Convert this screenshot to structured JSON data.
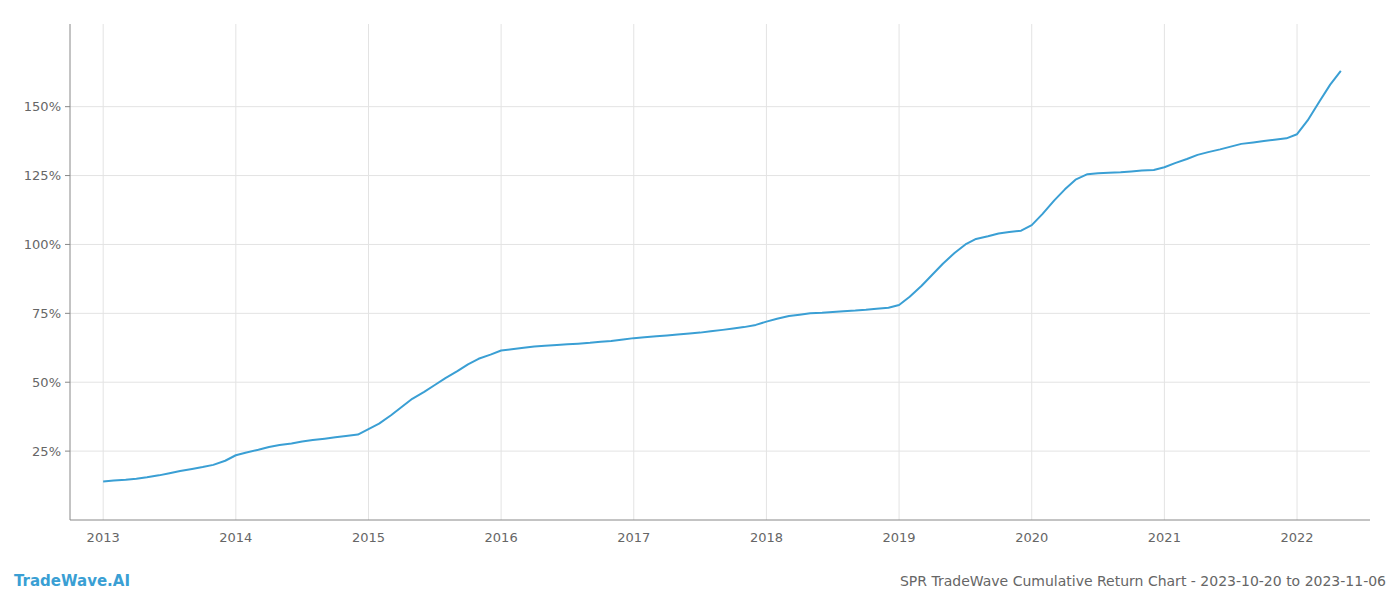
{
  "chart_data": {
    "type": "line",
    "title": "SPR TradeWave Cumulative Return Chart - 2023-10-20 to 2023-11-06",
    "annotations": [
      "TradeWave.AI"
    ],
    "color": "#3a9fd4",
    "grid": true,
    "x": [
      2013.0,
      2013.08,
      2013.17,
      2013.25,
      2013.33,
      2013.42,
      2013.5,
      2013.58,
      2013.67,
      2013.75,
      2013.83,
      2013.92,
      2014.0,
      2014.08,
      2014.17,
      2014.25,
      2014.33,
      2014.42,
      2014.5,
      2014.58,
      2014.67,
      2014.75,
      2014.83,
      2014.92,
      2015.0,
      2015.08,
      2015.17,
      2015.25,
      2015.33,
      2015.42,
      2015.5,
      2015.58,
      2015.67,
      2015.75,
      2015.83,
      2015.92,
      2016.0,
      2016.08,
      2016.17,
      2016.25,
      2016.33,
      2016.42,
      2016.5,
      2016.58,
      2016.67,
      2016.75,
      2016.83,
      2016.92,
      2017.0,
      2017.08,
      2017.17,
      2017.25,
      2017.33,
      2017.42,
      2017.5,
      2017.58,
      2017.67,
      2017.75,
      2017.83,
      2017.92,
      2018.0,
      2018.08,
      2018.17,
      2018.25,
      2018.33,
      2018.42,
      2018.5,
      2018.58,
      2018.67,
      2018.75,
      2018.83,
      2018.92,
      2019.0,
      2019.08,
      2019.17,
      2019.25,
      2019.33,
      2019.42,
      2019.5,
      2019.58,
      2019.67,
      2019.75,
      2019.83,
      2019.92,
      2020.0,
      2020.08,
      2020.17,
      2020.25,
      2020.33,
      2020.42,
      2020.5,
      2020.58,
      2020.67,
      2020.75,
      2020.83,
      2020.92,
      2021.0,
      2021.08,
      2021.17,
      2021.25,
      2021.33,
      2021.42,
      2021.5,
      2021.58,
      2021.67,
      2021.75,
      2021.83,
      2021.92,
      2022.0,
      2022.08,
      2022.17,
      2022.25,
      2022.33
    ],
    "values": [
      14.0,
      14.3,
      14.6,
      15.0,
      15.5,
      16.2,
      17.0,
      17.8,
      18.5,
      19.2,
      20.0,
      21.5,
      23.5,
      24.5,
      25.5,
      26.5,
      27.2,
      27.8,
      28.5,
      29.0,
      29.5,
      30.0,
      30.5,
      31.0,
      33.0,
      35.0,
      38.0,
      41.0,
      44.0,
      46.5,
      49.0,
      51.5,
      54.0,
      56.5,
      58.5,
      60.0,
      61.5,
      62.0,
      62.5,
      63.0,
      63.2,
      63.5,
      63.8,
      64.0,
      64.3,
      64.7,
      65.0,
      65.5,
      66.0,
      66.3,
      66.7,
      67.0,
      67.3,
      67.7,
      68.0,
      68.5,
      69.0,
      69.5,
      70.0,
      70.8,
      72.0,
      73.0,
      74.0,
      74.5,
      75.0,
      75.2,
      75.5,
      75.8,
      76.0,
      76.3,
      76.7,
      77.0,
      78.0,
      81.0,
      85.0,
      89.0,
      93.0,
      97.0,
      100.0,
      102.0,
      103.0,
      104.0,
      104.5,
      105.0,
      107.0,
      111.0,
      116.0,
      120.0,
      123.5,
      125.5,
      125.8,
      126.0,
      126.2,
      126.5,
      126.8,
      127.0,
      128.0,
      129.5,
      131.0,
      132.5,
      133.5,
      134.5,
      135.5,
      136.5,
      137.0,
      137.5,
      138.0,
      138.5,
      140.0,
      145.0,
      152.0,
      158.0,
      163.0
    ],
    "xlim": [
      2012.75,
      2022.55
    ],
    "ylim": [
      0,
      180
    ],
    "xticks": [
      2013,
      2014,
      2015,
      2016,
      2017,
      2018,
      2019,
      2020,
      2021,
      2022
    ],
    "yticks": [
      {
        "value": 25,
        "label": "25%"
      },
      {
        "value": 50,
        "label": "50%"
      },
      {
        "value": 75,
        "label": "75%"
      },
      {
        "value": 100,
        "label": "100%"
      },
      {
        "value": 125,
        "label": "125%"
      },
      {
        "value": 150,
        "label": "150%"
      }
    ]
  }
}
